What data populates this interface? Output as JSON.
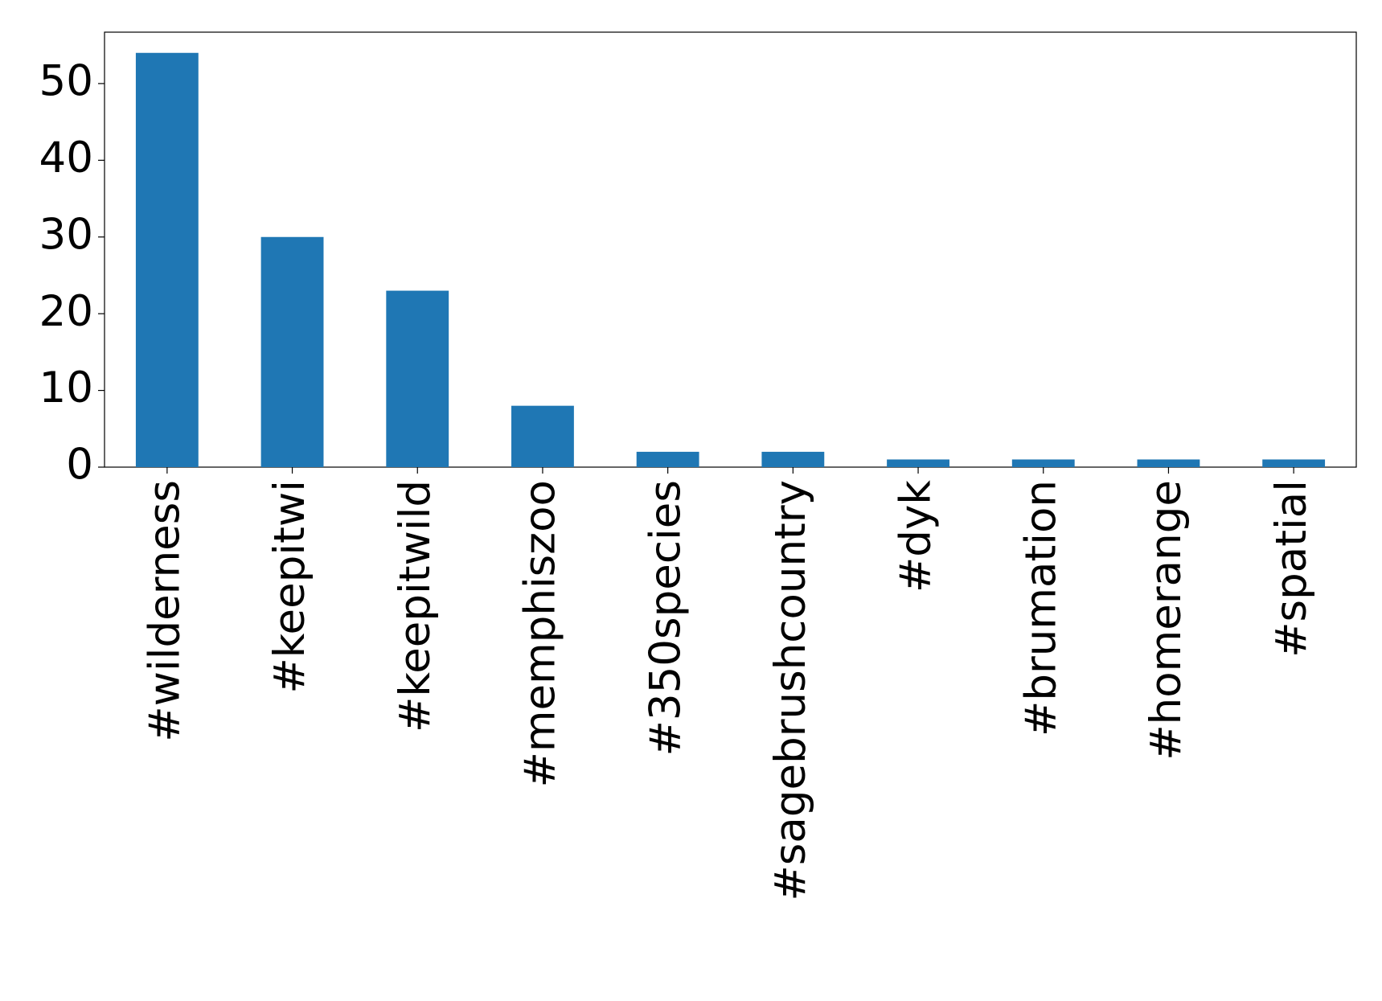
{
  "chart_data": {
    "type": "bar",
    "categories": [
      "#wilderness",
      "#keepitwi",
      "#keepitwild",
      "#memphiszoo",
      "#350species",
      "#sagebrushcountry",
      "#dyk",
      "#brumation",
      "#homerange",
      "#spatial"
    ],
    "values": [
      54,
      30,
      23,
      8,
      2,
      2,
      1,
      1,
      1,
      1
    ],
    "color": "#1f77b4",
    "ylim": [
      0,
      56.7
    ],
    "yticks": [
      0,
      10,
      20,
      30,
      40,
      50
    ],
    "grid": false
  }
}
